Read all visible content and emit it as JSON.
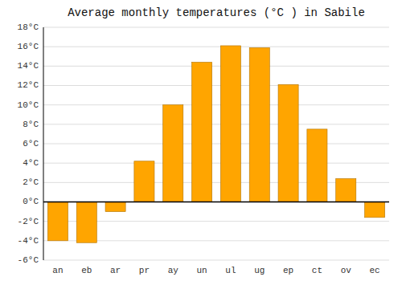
{
  "chart_data": {
    "type": "bar",
    "title": "Average monthly temperatures (°C ) in Sabile",
    "categories": [
      "an",
      "eb",
      "ar",
      "pr",
      "ay",
      "un",
      "ul",
      "ug",
      "ep",
      "ct",
      "ov",
      "ec"
    ],
    "values": [
      -4.0,
      -4.2,
      -1.0,
      4.2,
      10.0,
      14.4,
      16.1,
      15.9,
      12.1,
      7.5,
      2.4,
      -1.6
    ],
    "color": "#FFA500",
    "ylim": [
      -6,
      18
    ],
    "yticks": [
      {
        "value": -6,
        "label": "-6°C"
      },
      {
        "value": -4,
        "label": "-4°C"
      },
      {
        "value": -2,
        "label": "-2°C"
      },
      {
        "value": 0,
        "label": "0°C"
      },
      {
        "value": 2,
        "label": "2°C"
      },
      {
        "value": 4,
        "label": "4°C"
      },
      {
        "value": 6,
        "label": "6°C"
      },
      {
        "value": 8,
        "label": "8°C"
      },
      {
        "value": 10,
        "label": "10°C"
      },
      {
        "value": 12,
        "label": "12°C"
      },
      {
        "value": 14,
        "label": "14°C"
      },
      {
        "value": 16,
        "label": "16°C"
      },
      {
        "value": 18,
        "label": "18°C"
      }
    ],
    "grid": true
  }
}
